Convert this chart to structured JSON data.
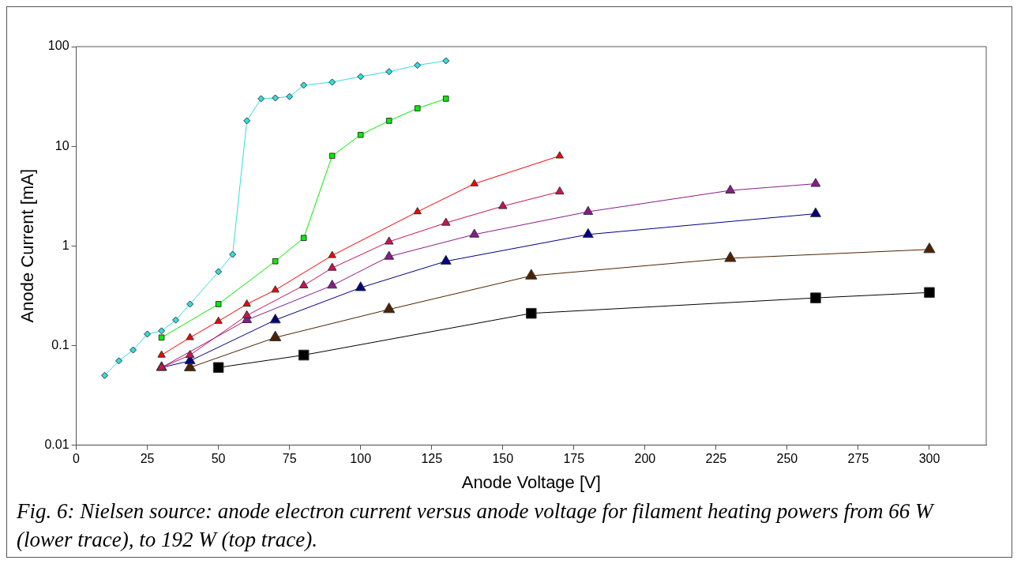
{
  "chart_data": {
    "type": "line",
    "xlabel": "Anode Voltage [V]",
    "ylabel": "Anode Current [mA]",
    "xlim": [
      0,
      320
    ],
    "xticks": [
      0,
      25,
      50,
      75,
      100,
      125,
      150,
      175,
      200,
      225,
      250,
      275,
      300
    ],
    "ylim": [
      0.01,
      100
    ],
    "yticks": [
      0.01,
      0.1,
      1,
      10,
      100
    ],
    "log": "y",
    "grid": false,
    "legend": false,
    "line_style": "solid",
    "annotations": [
      "Fig. 6: Nielsen source: anode electron current versus anode voltage for filament heating powers from 66 W (lower trace), to 192 W (top trace)."
    ],
    "series": [
      {
        "color": "#33dddd",
        "marker": "diamond",
        "x": [
          10,
          15,
          20,
          25,
          30,
          35,
          40,
          50,
          55,
          60,
          65,
          70,
          75,
          80,
          90,
          100,
          110,
          120,
          130
        ],
        "values": [
          0.05,
          0.07,
          0.09,
          0.13,
          0.14,
          0.18,
          0.26,
          0.55,
          0.82,
          18,
          30,
          30.5,
          31.5,
          41,
          44,
          50,
          56,
          65,
          72
        ]
      },
      {
        "color": "#00ee00",
        "marker": "square",
        "x": [
          30,
          50,
          70,
          80,
          90,
          100,
          110,
          120,
          130
        ],
        "values": [
          0.12,
          0.26,
          0.7,
          1.2,
          8,
          13,
          18,
          24,
          30
        ]
      },
      {
        "color": "#ff0000",
        "marker": "triangle",
        "x": [
          30,
          40,
          50,
          60,
          70,
          90,
          120,
          140,
          170
        ],
        "values": [
          0.08,
          0.12,
          0.175,
          0.26,
          0.36,
          0.8,
          2.2,
          4.2,
          8
        ]
      },
      {
        "color": "#cc1155",
        "marker": "triangle",
        "x": [
          30,
          40,
          60,
          80,
          90,
          110,
          130,
          150,
          170
        ],
        "values": [
          0.06,
          0.08,
          0.2,
          0.4,
          0.6,
          1.1,
          1.7,
          2.5,
          3.5
        ]
      },
      {
        "color": "#8a1a8a",
        "marker": "triangle",
        "x": [
          30,
          60,
          90,
          110,
          140,
          180,
          230,
          260
        ],
        "values": [
          0.06,
          0.18,
          0.4,
          0.78,
          1.3,
          2.2,
          3.6,
          4.2
        ]
      },
      {
        "color": "#000080",
        "marker": "triangle",
        "x": [
          30,
          40,
          70,
          100,
          130,
          180,
          260
        ],
        "values": [
          0.06,
          0.07,
          0.18,
          0.38,
          0.7,
          1.3,
          2.1
        ]
      },
      {
        "color": "#4d2200",
        "marker": "triangle",
        "x": [
          40,
          70,
          110,
          160,
          230,
          300
        ],
        "values": [
          0.06,
          0.12,
          0.23,
          0.5,
          0.75,
          0.92
        ]
      },
      {
        "color": "#000000",
        "marker": "square",
        "x": [
          50,
          80,
          160,
          260,
          300
        ],
        "values": [
          0.06,
          0.08,
          0.21,
          0.3,
          0.34
        ]
      }
    ]
  }
}
